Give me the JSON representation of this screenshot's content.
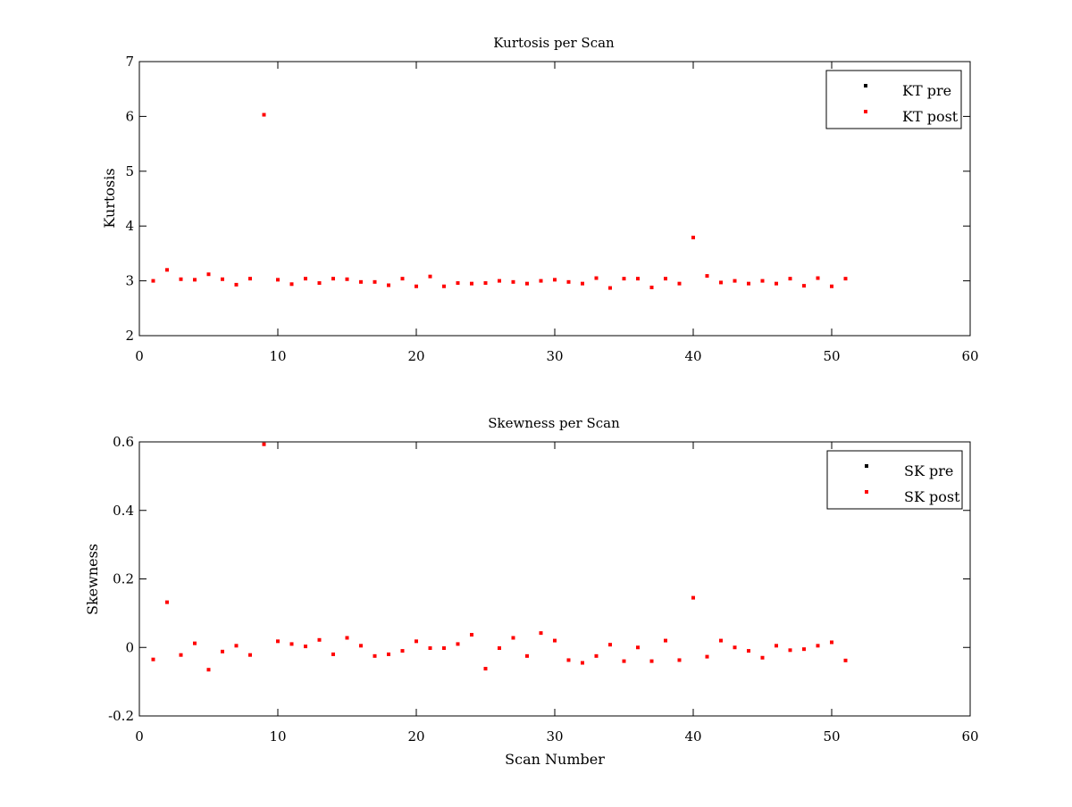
{
  "chart_data": [
    {
      "type": "scatter",
      "title": "Kurtosis per Scan",
      "xlabel": "",
      "ylabel": "Kurtosis",
      "xlim": [
        0,
        60
      ],
      "ylim": [
        2,
        7
      ],
      "xticks": [
        "0",
        "10",
        "20",
        "30",
        "40",
        "50",
        "60"
      ],
      "yticks": [
        "2",
        "3",
        "4",
        "5",
        "6",
        "7"
      ],
      "grid": false,
      "legend_position": "top-right",
      "series": [
        {
          "name": "KT pre",
          "color": "#000000",
          "x": [],
          "y": []
        },
        {
          "name": "KT post",
          "color": "#ff0000",
          "x": [
            1,
            2,
            3,
            4,
            5,
            6,
            7,
            8,
            9,
            10,
            11,
            12,
            13,
            14,
            15,
            16,
            17,
            18,
            19,
            20,
            21,
            22,
            23,
            24,
            25,
            26,
            27,
            28,
            29,
            30,
            31,
            32,
            33,
            34,
            35,
            36,
            37,
            38,
            39,
            40,
            41,
            42,
            43,
            44,
            45,
            46,
            47,
            48,
            49,
            50,
            51
          ],
          "y": [
            3.0,
            3.2,
            3.03,
            3.02,
            3.12,
            3.03,
            2.93,
            3.04,
            6.03,
            3.02,
            2.94,
            3.04,
            2.96,
            3.04,
            3.03,
            2.98,
            2.98,
            2.92,
            3.04,
            2.9,
            3.08,
            2.9,
            2.96,
            2.95,
            2.96,
            3.0,
            2.98,
            2.95,
            3.0,
            3.02,
            2.98,
            2.95,
            3.05,
            2.87,
            3.04,
            3.04,
            2.88,
            3.04,
            2.95,
            3.79,
            3.09,
            2.97,
            3.0,
            2.95,
            3.0,
            2.95,
            3.04,
            2.91,
            3.05,
            2.9,
            3.04
          ]
        }
      ]
    },
    {
      "type": "scatter",
      "title": "Skewness per Scan",
      "xlabel": "Scan Number",
      "ylabel": "Skewness",
      "xlim": [
        0,
        60
      ],
      "ylim": [
        -0.2,
        0.6
      ],
      "xticks": [
        "0",
        "10",
        "20",
        "30",
        "40",
        "50",
        "60"
      ],
      "yticks": [
        "-0.2",
        "0",
        "0.2",
        "0.4",
        "0.6"
      ],
      "grid": false,
      "legend_position": "top-right",
      "series": [
        {
          "name": "SK pre",
          "color": "#000000",
          "x": [],
          "y": []
        },
        {
          "name": "SK post",
          "color": "#ff0000",
          "x": [
            1,
            2,
            3,
            4,
            5,
            6,
            7,
            8,
            9,
            10,
            11,
            12,
            13,
            14,
            15,
            16,
            17,
            18,
            19,
            20,
            21,
            22,
            23,
            24,
            25,
            26,
            27,
            28,
            29,
            30,
            31,
            32,
            33,
            34,
            35,
            36,
            37,
            38,
            39,
            40,
            41,
            42,
            43,
            44,
            45,
            46,
            47,
            48,
            49,
            50,
            51
          ],
          "y": [
            -0.035,
            0.132,
            -0.022,
            0.012,
            -0.065,
            -0.012,
            0.005,
            -0.022,
            0.593,
            0.018,
            0.01,
            0.003,
            0.022,
            -0.02,
            0.028,
            0.005,
            -0.025,
            -0.02,
            -0.01,
            0.018,
            -0.002,
            -0.002,
            0.01,
            0.037,
            -0.062,
            -0.002,
            0.028,
            -0.025,
            0.042,
            0.02,
            -0.037,
            -0.045,
            -0.025,
            0.008,
            -0.04,
            0.0,
            -0.04,
            0.02,
            -0.037,
            0.145,
            -0.027,
            0.02,
            0.0,
            -0.01,
            -0.03,
            0.005,
            -0.008,
            -0.005,
            0.005,
            0.015,
            -0.038
          ]
        }
      ]
    }
  ]
}
